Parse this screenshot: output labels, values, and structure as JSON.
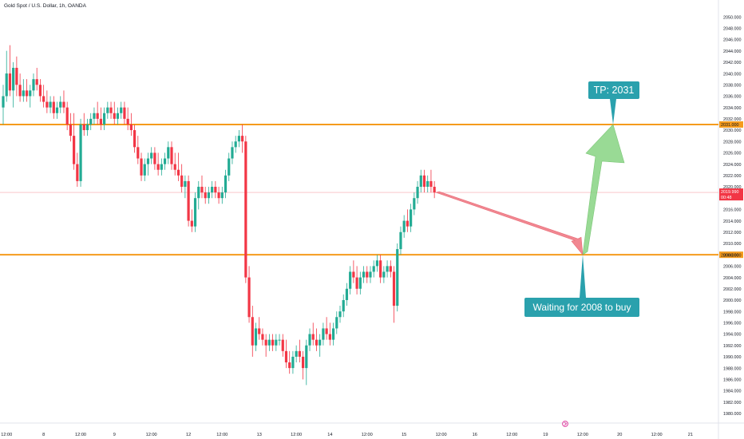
{
  "header": {
    "symbol_title": "Gold Spot / U.S. Dollar, 1h, OANDA"
  },
  "colors": {
    "up": "#22ab94",
    "down": "#f23645",
    "level_line": "#f59b1c",
    "callout": "#2aa1ad",
    "green_arrow": "#8fd68a",
    "red_arrow": "#f07b86",
    "price_line": "#f7a5ab"
  },
  "chart_data": {
    "type": "candlestick",
    "title": "Gold Spot / U.S. Dollar, 1h, OANDA",
    "ylim": [
      1979,
      2051
    ],
    "y_ticks": [
      1980,
      1982,
      1984,
      1986,
      1988,
      1990,
      1992,
      1994,
      1996,
      1998,
      2000,
      2002,
      2004,
      2006,
      2008,
      2010,
      2012,
      2014,
      2016,
      2018,
      2020,
      2022,
      2024,
      2026,
      2028,
      2030,
      2032,
      2034,
      2036,
      2038,
      2040,
      2042,
      2044,
      2046,
      2048,
      2050
    ],
    "y_tick_labels": [
      "1980.000",
      "1982.000",
      "1984.000",
      "1986.000",
      "1988.000",
      "1990.000",
      "1992.000",
      "1994.000",
      "1996.000",
      "1998.000",
      "2000.000",
      "2002.000",
      "2004.000",
      "2006.000",
      "2008.000",
      "2010.000",
      "2012.000",
      "2014.000",
      "2016.000",
      "2018.000",
      "2020.000",
      "2022.000",
      "2024.000",
      "2026.000",
      "2028.000",
      "2030.000",
      "2032.000",
      "2034.000",
      "2036.000",
      "2038.000",
      "2040.000",
      "2042.000",
      "2044.000",
      "2046.000",
      "2048.000",
      "2050.000"
    ],
    "x_ticks": [
      {
        "label": "12:00",
        "bar": 1
      },
      {
        "label": "8",
        "bar": 12
      },
      {
        "label": "12:00",
        "bar": 23
      },
      {
        "label": "9",
        "bar": 33
      },
      {
        "label": "12:00",
        "bar": 44
      },
      {
        "label": "12",
        "bar": 55
      },
      {
        "label": "12:00",
        "bar": 65
      },
      {
        "label": "13",
        "bar": 76
      },
      {
        "label": "12:00",
        "bar": 87
      },
      {
        "label": "14",
        "bar": 97
      },
      {
        "label": "12:00",
        "bar": 108
      },
      {
        "label": "15",
        "bar": 119
      },
      {
        "label": "12:00",
        "bar": 130
      },
      {
        "label": "16",
        "bar": 140
      },
      {
        "label": "12:00",
        "bar": 151
      },
      {
        "label": "19",
        "bar": 161
      },
      {
        "label": "12:00",
        "bar": 172
      },
      {
        "label": "20",
        "bar": 183
      },
      {
        "label": "12:00",
        "bar": 194
      },
      {
        "label": "21",
        "bar": 204
      }
    ],
    "ohlc": [
      [
        2034,
        2038,
        2031,
        2036
      ],
      [
        2036,
        2044,
        2035,
        2040
      ],
      [
        2040,
        2045,
        2036,
        2037
      ],
      [
        2037,
        2042,
        2034,
        2041
      ],
      [
        2041,
        2043,
        2036,
        2038
      ],
      [
        2038,
        2040,
        2035,
        2036
      ],
      [
        2036,
        2039,
        2035,
        2037
      ],
      [
        2037,
        2039,
        2035,
        2036
      ],
      [
        2036,
        2038,
        2034,
        2037
      ],
      [
        2037,
        2040,
        2036,
        2039
      ],
      [
        2039,
        2041,
        2037,
        2038
      ],
      [
        2038,
        2039,
        2035,
        2036
      ],
      [
        2036,
        2038,
        2034,
        2035
      ],
      [
        2035,
        2037,
        2033,
        2034
      ],
      [
        2034,
        2036,
        2033,
        2035
      ],
      [
        2035,
        2036,
        2032,
        2033
      ],
      [
        2033,
        2035,
        2032,
        2034
      ],
      [
        2034,
        2036,
        2033,
        2035
      ],
      [
        2035,
        2037,
        2033,
        2034
      ],
      [
        2034,
        2035,
        2030,
        2031
      ],
      [
        2031,
        2033,
        2028,
        2029
      ],
      [
        2029,
        2033,
        2023,
        2024
      ],
      [
        2024,
        2026,
        2020,
        2021
      ],
      [
        2021,
        2032,
        2020,
        2031
      ],
      [
        2031,
        2033,
        2029,
        2030
      ],
      [
        2030,
        2032,
        2029,
        2031
      ],
      [
        2031,
        2033,
        2030,
        2032
      ],
      [
        2032,
        2034,
        2031,
        2033
      ],
      [
        2033,
        2035,
        2031,
        2032
      ],
      [
        2032,
        2034,
        2030,
        2031
      ],
      [
        2031,
        2034,
        2030,
        2033
      ],
      [
        2033,
        2035,
        2032,
        2034
      ],
      [
        2034,
        2035,
        2032,
        2033
      ],
      [
        2033,
        2035,
        2031,
        2032
      ],
      [
        2032,
        2034,
        2031,
        2033
      ],
      [
        2033,
        2035,
        2032,
        2034
      ],
      [
        2034,
        2035,
        2031,
        2032
      ],
      [
        2032,
        2034,
        2030,
        2031
      ],
      [
        2031,
        2033,
        2029,
        2030
      ],
      [
        2030,
        2031,
        2026,
        2027
      ],
      [
        2027,
        2029,
        2024,
        2025
      ],
      [
        2025,
        2026,
        2021,
        2022
      ],
      [
        2022,
        2025,
        2021,
        2024
      ],
      [
        2024,
        2026,
        2022,
        2025
      ],
      [
        2025,
        2027,
        2024,
        2026
      ],
      [
        2026,
        2027,
        2023,
        2024
      ],
      [
        2024,
        2026,
        2022,
        2023
      ],
      [
        2023,
        2025,
        2022,
        2024
      ],
      [
        2024,
        2026,
        2023,
        2025
      ],
      [
        2025,
        2028,
        2024,
        2027
      ],
      [
        2027,
        2028,
        2023,
        2024
      ],
      [
        2024,
        2026,
        2022,
        2023
      ],
      [
        2023,
        2026,
        2021,
        2022
      ],
      [
        2022,
        2024,
        2019,
        2020
      ],
      [
        2020,
        2022,
        2018,
        2021
      ],
      [
        2021,
        2022,
        2013,
        2014
      ],
      [
        2014,
        2016,
        2012,
        2013
      ],
      [
        2013,
        2019,
        2012,
        2018
      ],
      [
        2018,
        2021,
        2016,
        2020
      ],
      [
        2020,
        2022,
        2018,
        2019
      ],
      [
        2019,
        2020,
        2017,
        2018
      ],
      [
        2018,
        2020,
        2017,
        2019
      ],
      [
        2019,
        2021,
        2018,
        2020
      ],
      [
        2020,
        2021,
        2018,
        2019
      ],
      [
        2019,
        2020,
        2017,
        2018
      ],
      [
        2018,
        2020,
        2017,
        2019
      ],
      [
        2019,
        2023,
        2018,
        2022
      ],
      [
        2022,
        2026,
        2021,
        2025
      ],
      [
        2025,
        2028,
        2024,
        2027
      ],
      [
        2027,
        2029,
        2026,
        2028
      ],
      [
        2028,
        2030,
        2027,
        2029
      ],
      [
        2029,
        2031,
        2026,
        2028
      ],
      [
        2028,
        2029,
        2003,
        2004
      ],
      [
        2004,
        2006,
        1996,
        1997
      ],
      [
        1997,
        1999,
        1990,
        1992
      ],
      [
        1992,
        1996,
        1991,
        1995
      ],
      [
        1995,
        1997,
        1993,
        1994
      ],
      [
        1994,
        1995,
        1992,
        1993
      ],
      [
        1993,
        1994,
        1990,
        1992
      ],
      [
        1992,
        1994,
        1991,
        1993
      ],
      [
        1993,
        1994,
        1991,
        1992
      ],
      [
        1992,
        1994,
        1991,
        1993
      ],
      [
        1993,
        1994,
        1992,
        1993
      ],
      [
        1993,
        1994,
        1990,
        1991
      ],
      [
        1991,
        1993,
        1988,
        1989
      ],
      [
        1989,
        1991,
        1987,
        1988
      ],
      [
        1988,
        1991,
        1987,
        1990
      ],
      [
        1990,
        1992,
        1989,
        1991
      ],
      [
        1991,
        1993,
        1989,
        1990
      ],
      [
        1990,
        1991,
        1986,
        1988
      ],
      [
        1988,
        1993,
        1985,
        1992
      ],
      [
        1992,
        1995,
        1991,
        1994
      ],
      [
        1994,
        1996,
        1992,
        1993
      ],
      [
        1993,
        1995,
        1991,
        1992
      ],
      [
        1992,
        1994,
        1990,
        1993
      ],
      [
        1993,
        1996,
        1992,
        1995
      ],
      [
        1995,
        1997,
        1993,
        1994
      ],
      [
        1994,
        1996,
        1992,
        1993
      ],
      [
        1993,
        1996,
        1992,
        1995
      ],
      [
        1995,
        1998,
        1994,
        1997
      ],
      [
        1997,
        1999,
        1996,
        1998
      ],
      [
        1998,
        2001,
        1997,
        2000
      ],
      [
        2000,
        2003,
        1999,
        2002
      ],
      [
        2002,
        2006,
        2001,
        2005
      ],
      [
        2005,
        2007,
        2003,
        2004
      ],
      [
        2004,
        2006,
        2001,
        2002
      ],
      [
        2002,
        2005,
        2001,
        2004
      ],
      [
        2004,
        2006,
        2003,
        2005
      ],
      [
        2005,
        2006,
        2003,
        2004
      ],
      [
        2004,
        2006,
        2003,
        2005
      ],
      [
        2005,
        2007,
        2004,
        2006
      ],
      [
        2006,
        2008,
        2005,
        2007
      ],
      [
        2007,
        2008,
        2003,
        2004
      ],
      [
        2004,
        2006,
        2003,
        2005
      ],
      [
        2005,
        2007,
        2004,
        2006
      ],
      [
        2006,
        2007,
        2004,
        2005
      ],
      [
        2005,
        2006,
        1996,
        1999
      ],
      [
        1999,
        2010,
        1998,
        2009
      ],
      [
        2009,
        2013,
        2008,
        2012
      ],
      [
        2012,
        2015,
        2011,
        2014
      ],
      [
        2014,
        2016,
        2012,
        2013
      ],
      [
        2013,
        2017,
        2012,
        2016
      ],
      [
        2016,
        2019,
        2015,
        2018
      ],
      [
        2018,
        2021,
        2017,
        2020
      ],
      [
        2020,
        2023,
        2019,
        2022
      ],
      [
        2022,
        2023,
        2019,
        2020
      ],
      [
        2020,
        2022,
        2019,
        2021
      ],
      [
        2021,
        2023,
        2019,
        2020
      ],
      [
        2020,
        2021,
        2018,
        2019
      ]
    ],
    "current_price_label": "2019.990",
    "countdown_label": "00:48",
    "levels": [
      {
        "value": 2031,
        "label": "2031.000"
      },
      {
        "value": 2008,
        "label": "2008.000"
      }
    ],
    "annotations": [
      {
        "text": "TP:  2031",
        "type": "callout",
        "points_to": 2031
      },
      {
        "text": "Waiting for 2008 to buy",
        "type": "callout",
        "points_to": 2008
      }
    ],
    "projection": {
      "from_price": 2019,
      "dip_to": 2008,
      "target": 2031
    }
  }
}
